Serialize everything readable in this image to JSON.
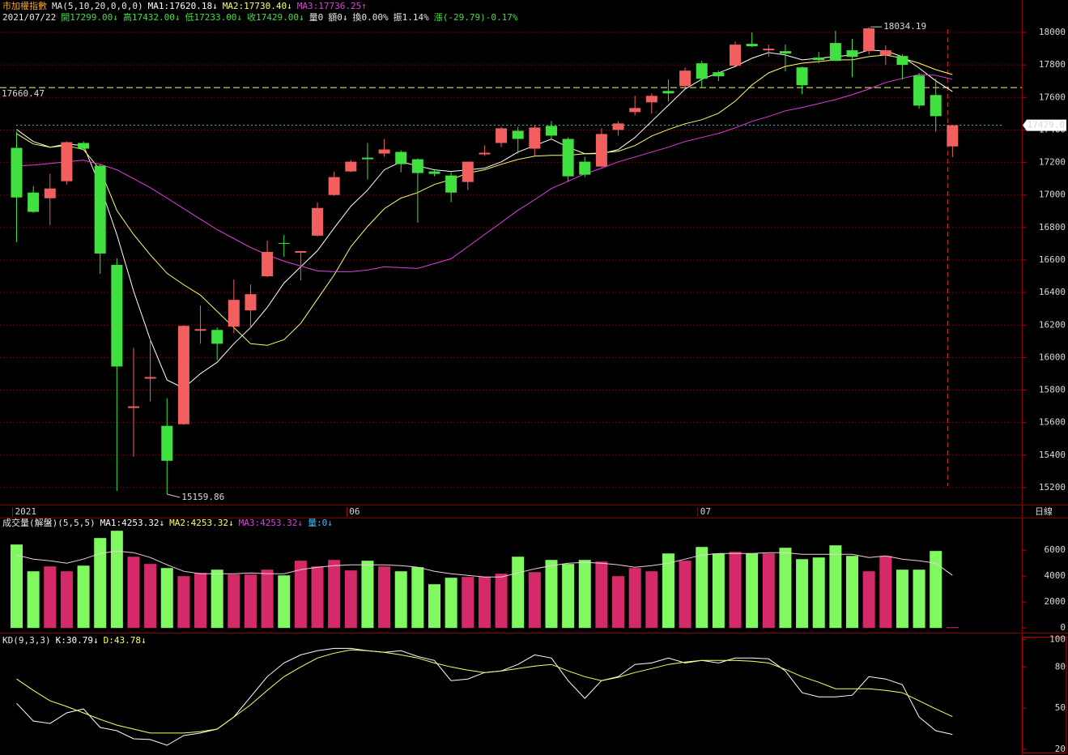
{
  "chart_data": [
    {
      "type": "candlestick",
      "title": "市加權指數",
      "indicator": "MA(5,10,20,0,0,0)",
      "info": [
        {
          "text": "2021/07/22",
          "color": "#e8e8e8"
        },
        {
          "text": "開17299.00↓",
          "color": "#40e040"
        },
        {
          "text": "高17432.00↓",
          "color": "#40e040"
        },
        {
          "text": "低17233.00↓",
          "color": "#40e040"
        },
        {
          "text": "收17429.00↓",
          "color": "#40e040"
        },
        {
          "text": "量0",
          "color": "#e8e8e8"
        },
        {
          "text": "額0↓",
          "color": "#e8e8e8"
        },
        {
          "text": "換0.00%",
          "color": "#e8e8e8"
        },
        {
          "text": "振1.14%",
          "color": "#e8e8e8"
        },
        {
          "text": "漲(-29.79)-0.17%",
          "color": "#40e040"
        }
      ],
      "categories": [
        "2021",
        null,
        null,
        null,
        null,
        null,
        null,
        null,
        null,
        null,
        null,
        null,
        null,
        null,
        null,
        null,
        null,
        null,
        null,
        null,
        "06",
        null,
        null,
        null,
        null,
        null,
        null,
        null,
        null,
        null,
        null,
        null,
        null,
        null,
        null,
        null,
        null,
        null,
        null,
        null,
        null,
        "07",
        null,
        null,
        null,
        null,
        null,
        null,
        null,
        null,
        null,
        null,
        null,
        null,
        null,
        null,
        null
      ],
      "open": [
        17290,
        17015,
        16980,
        17085,
        17320,
        17180,
        16570,
        15690,
        15870,
        15580,
        15590,
        16165,
        16170,
        16190,
        16290,
        16500,
        16705,
        16645,
        16750,
        17000,
        17145,
        17230,
        17255,
        17265,
        17220,
        17145,
        17120,
        17080,
        17250,
        17320,
        17395,
        17285,
        17425,
        17345,
        17205,
        17175,
        17400,
        17510,
        17570,
        17640,
        17670,
        17810,
        17755,
        17795,
        17930,
        17890,
        17885,
        17785,
        17845,
        17935,
        17890,
        17885,
        17860,
        17855,
        17735,
        17615,
        17299
      ],
      "high": [
        17390,
        17055,
        17130,
        17330,
        17330,
        17190,
        16610,
        16060,
        16120,
        15750,
        16200,
        16320,
        16185,
        16480,
        16450,
        16720,
        16755,
        16655,
        16955,
        17145,
        17215,
        17320,
        17345,
        17275,
        17225,
        17155,
        17140,
        17205,
        17305,
        17420,
        17420,
        17430,
        17455,
        17355,
        17235,
        17410,
        17455,
        17610,
        17625,
        17710,
        17785,
        17825,
        17765,
        17945,
        18000,
        17925,
        17925,
        17790,
        17880,
        18010,
        17960,
        18034.19,
        17920,
        17865,
        17750,
        17715,
        17432
      ],
      "low": [
        16710,
        16890,
        16815,
        17065,
        17280,
        16515,
        15180,
        15390,
        15730,
        15159.86,
        15585,
        16085,
        15985,
        16150,
        16180,
        16495,
        16620,
        16475,
        16745,
        16995,
        17140,
        17095,
        17235,
        17140,
        16830,
        17115,
        16955,
        17030,
        17240,
        17295,
        17255,
        17240,
        17345,
        17080,
        17110,
        17170,
        17365,
        17490,
        17500,
        17575,
        17660,
        17665,
        17700,
        17795,
        17910,
        17850,
        17760,
        17620,
        17810,
        17825,
        17725,
        17865,
        17800,
        17710,
        17530,
        17390,
        17233
      ],
      "close": [
        16985,
        16896,
        17040,
        17325,
        17285,
        16640,
        15945,
        15700,
        15880,
        15365,
        16195,
        16175,
        16085,
        16355,
        16390,
        16650,
        16700,
        16655,
        16920,
        17110,
        17205,
        17220,
        17280,
        17190,
        17135,
        17130,
        17015,
        17205,
        17260,
        17410,
        17345,
        17415,
        17365,
        17115,
        17125,
        17375,
        17440,
        17535,
        17610,
        17625,
        17765,
        17715,
        17730,
        17925,
        17915,
        17900,
        17870,
        17675,
        17830,
        17825,
        17850,
        18025,
        17890,
        17800,
        17550,
        17485,
        17429
      ],
      "up_color": "#f25f5f",
      "down_color": "#3fe03f",
      "series": [
        {
          "name": "MA1:17620.18↓",
          "color": "#ffffff",
          "values": [
            17403,
            17329,
            17294,
            17314,
            17304,
            17055,
            16757,
            16409,
            16110,
            15862,
            15812,
            15901,
            15971,
            16085,
            16185,
            16309,
            16458,
            16558,
            16657,
            16797,
            16931,
            17030,
            17155,
            17204,
            17179,
            17155,
            17145,
            17155,
            17165,
            17204,
            17264,
            17304,
            17344,
            17294,
            17254,
            17254,
            17279,
            17354,
            17453,
            17552,
            17652,
            17712,
            17751,
            17791,
            17841,
            17876,
            17861,
            17831,
            17841,
            17851,
            17861,
            17891,
            17886,
            17851,
            17781,
            17702,
            17637
          ]
        },
        {
          "name": "MA2:17730.40↓",
          "color": "#ffff66",
          "values": [
            17378,
            17314,
            17294,
            17304,
            17279,
            17155,
            16906,
            16757,
            16632,
            16518,
            16448,
            16384,
            16284,
            16185,
            16085,
            16075,
            16110,
            16210,
            16359,
            16508,
            16682,
            16806,
            16916,
            16981,
            17015,
            17065,
            17095,
            17135,
            17155,
            17189,
            17219,
            17239,
            17244,
            17244,
            17254,
            17259,
            17269,
            17304,
            17363,
            17403,
            17438,
            17463,
            17503,
            17577,
            17677,
            17751,
            17791,
            17811,
            17821,
            17831,
            17831,
            17851,
            17861,
            17841,
            17811,
            17771,
            17741
          ]
        },
        {
          "name": "MA3:17736.25↑",
          "color": "#e040e0",
          "values": [
            17179,
            17184,
            17194,
            17204,
            17214,
            17189,
            17155,
            17100,
            17045,
            16981,
            16916,
            16851,
            16787,
            16732,
            16677,
            16632,
            16593,
            16563,
            16533,
            16528,
            16528,
            16538,
            16558,
            16553,
            16548,
            16578,
            16608,
            16682,
            16757,
            16831,
            16906,
            16971,
            17040,
            17085,
            17130,
            17165,
            17204,
            17234,
            17264,
            17294,
            17329,
            17354,
            17379,
            17413,
            17453,
            17483,
            17518,
            17538,
            17562,
            17587,
            17617,
            17652,
            17692,
            17717,
            17741,
            17736,
            17712
          ]
        }
      ],
      "ylim": [
        15100,
        18050
      ],
      "yticks": [
        15200,
        15400,
        15600,
        15800,
        16000,
        16200,
        16400,
        16600,
        16800,
        17000,
        17200,
        17400,
        17600,
        17800,
        18000
      ],
      "grid": true,
      "reference_line": 17660.47,
      "reference_color": "#ffff66",
      "last_price": {
        "value": 17429,
        "label": "17429.0"
      },
      "period": "日線"
    },
    {
      "type": "bar",
      "title": "成交量(解盤)(5,5,5)",
      "legend": [
        {
          "text": "MA1:4253.32↓",
          "color": "#ffffff"
        },
        {
          "text": "MA2:4253.32↓",
          "color": "#ffff66"
        },
        {
          "text": "MA3:4253.32↓",
          "color": "#e040e0"
        },
        {
          "text": "量:0↓",
          "color": "#40c0ff"
        }
      ],
      "values": [
        6440,
        4375,
        4750,
        4375,
        4810,
        6940,
        7500,
        5500,
        4940,
        4625,
        4000,
        4250,
        4500,
        4125,
        4125,
        4500,
        4060,
        5190,
        4750,
        5250,
        4440,
        5190,
        4750,
        4375,
        4690,
        3375,
        3875,
        3940,
        3940,
        4190,
        5500,
        4310,
        5250,
        4940,
        5250,
        5125,
        4000,
        4625,
        4375,
        5750,
        5190,
        6250,
        5750,
        5875,
        5750,
        5750,
        6190,
        5310,
        5440,
        6375,
        5560,
        4375,
        5560,
        4500,
        4500,
        5940,
        60
      ],
      "up_color": "#d42a6a",
      "down_color": "#80f860",
      "ma": {
        "color": "#f0d0e0",
        "values": [
          5625,
          5313,
          5188,
          5000,
          5313,
          5750,
          5938,
          5813,
          5438,
          4875,
          4375,
          4188,
          4188,
          4188,
          4250,
          4188,
          4188,
          4500,
          4688,
          4813,
          4875,
          4875,
          4875,
          4813,
          4688,
          4375,
          4188,
          4063,
          3938,
          3938,
          4250,
          4563,
          4813,
          5000,
          5063,
          5000,
          4875,
          4688,
          4813,
          5000,
          5313,
          5625,
          5750,
          5750,
          5750,
          5813,
          5813,
          5688,
          5688,
          5688,
          5688,
          5438,
          5563,
          5313,
          5188,
          5000,
          4063
        ]
      },
      "ylim": [
        -300,
        8450
      ],
      "yticks": [
        0,
        2000,
        4000,
        6000
      ]
    },
    {
      "type": "line",
      "title": "KD(9,3,3)",
      "series": [
        {
          "name": "K:30.79↓",
          "color": "#ffffff",
          "values": [
            53.5,
            40.6,
            38.8,
            46.5,
            49.4,
            35.9,
            33.5,
            27.6,
            27.1,
            22.9,
            30.0,
            31.8,
            34.7,
            43.5,
            58.2,
            72.9,
            82.9,
            88.8,
            91.8,
            93.5,
            93.5,
            91.8,
            90.6,
            91.8,
            87.6,
            84.7,
            70.0,
            71.2,
            75.9,
            77.1,
            81.8,
            88.8,
            86.5,
            70.0,
            57.1,
            70.0,
            72.9,
            81.8,
            82.9,
            86.5,
            82.9,
            84.7,
            82.9,
            86.5,
            86.5,
            85.9,
            77.1,
            61.2,
            58.2,
            58.2,
            59.4,
            72.9,
            71.2,
            67.1,
            43.5,
            33.5,
            30.79
          ]
        },
        {
          "name": "D:43.78↓",
          "color": "#ffff66",
          "values": [
            71.2,
            62.9,
            55.3,
            51.2,
            46.5,
            41.8,
            37.6,
            34.7,
            31.8,
            31.8,
            31.8,
            32.9,
            34.7,
            43.5,
            52.4,
            62.9,
            72.9,
            80.0,
            86.5,
            90.0,
            92.4,
            91.8,
            90.6,
            88.8,
            86.5,
            82.9,
            80.0,
            77.6,
            75.9,
            77.1,
            78.8,
            80.6,
            81.8,
            77.1,
            72.9,
            70.0,
            72.4,
            75.9,
            78.8,
            81.8,
            83.5,
            84.7,
            84.7,
            84.7,
            84.1,
            82.9,
            78.2,
            72.9,
            68.8,
            64.1,
            64.1,
            64.1,
            62.9,
            61.2,
            55.3,
            49.4,
            43.78
          ]
        }
      ],
      "ylim": [
        17,
        102
      ],
      "yticks": [
        20,
        50,
        80,
        100
      ]
    }
  ]
}
